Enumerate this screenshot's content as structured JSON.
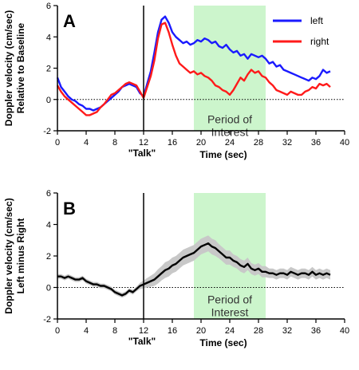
{
  "chart_data": [
    {
      "type": "line",
      "panel_label": "A",
      "ylabel_line1": "Doppler velocity (cm/sec)",
      "ylabel_line2": "Relative to Baseline",
      "xlabel": "Time  (sec)",
      "event_label": "\"Talk\"",
      "event_x": 12,
      "shaded_region": {
        "x": [
          19,
          29
        ],
        "label_line1": "Period of",
        "label_line2": "Interest",
        "color": "#ccf5cc"
      },
      "xlim": [
        0,
        40
      ],
      "ylim": [
        -2,
        6
      ],
      "xticks": [
        0,
        4,
        8,
        12,
        16,
        20,
        24,
        28,
        32,
        36,
        40
      ],
      "yticks": [
        -2,
        0,
        2,
        4,
        6
      ],
      "zero_line": "dotted",
      "legend_position": "top-right",
      "x": [
        0,
        0.5,
        1,
        1.5,
        2,
        2.5,
        3,
        3.5,
        4,
        4.5,
        5,
        5.5,
        6,
        6.5,
        7,
        7.5,
        8,
        8.5,
        9,
        9.5,
        10,
        10.5,
        11,
        11.5,
        12,
        12.5,
        13,
        13.5,
        14,
        14.5,
        15,
        15.5,
        16,
        16.5,
        17,
        17.5,
        18,
        18.5,
        19,
        19.5,
        20,
        20.5,
        21,
        21.5,
        22,
        22.5,
        23,
        23.5,
        24,
        24.5,
        25,
        25.5,
        26,
        26.5,
        27,
        27.5,
        28,
        28.5,
        29,
        29.5,
        30,
        30.5,
        31,
        31.5,
        32,
        32.5,
        33,
        33.5,
        34,
        34.5,
        35,
        35.5,
        36,
        36.5,
        37,
        37.5,
        38
      ],
      "series": [
        {
          "name": "left",
          "color": "#1a1aff",
          "values": [
            1.4,
            0.8,
            0.5,
            0.2,
            0.0,
            -0.1,
            -0.3,
            -0.4,
            -0.6,
            -0.6,
            -0.7,
            -0.6,
            -0.5,
            -0.3,
            -0.1,
            0.1,
            0.3,
            0.5,
            0.8,
            0.9,
            1.0,
            0.9,
            0.8,
            0.4,
            0.2,
            1.0,
            1.8,
            3.0,
            4.3,
            5.1,
            5.3,
            4.9,
            4.3,
            4.0,
            3.8,
            3.6,
            3.7,
            3.5,
            3.6,
            3.8,
            3.7,
            3.9,
            3.8,
            3.6,
            3.7,
            3.4,
            3.3,
            3.5,
            3.2,
            3.0,
            3.1,
            2.8,
            2.9,
            2.6,
            2.9,
            2.8,
            2.7,
            2.8,
            2.6,
            2.3,
            2.4,
            2.1,
            2.2,
            1.9,
            1.8,
            1.7,
            1.6,
            1.5,
            1.4,
            1.3,
            1.2,
            1.4,
            1.3,
            1.5,
            1.9,
            1.7,
            1.8
          ]
        },
        {
          "name": "right",
          "color": "#ff1a1a",
          "values": [
            0.9,
            0.5,
            0.2,
            0.0,
            -0.2,
            -0.4,
            -0.6,
            -0.8,
            -1.0,
            -1.0,
            -0.9,
            -0.8,
            -0.5,
            -0.3,
            0.0,
            0.3,
            0.4,
            0.6,
            0.8,
            1.0,
            1.1,
            1.0,
            0.9,
            0.5,
            0.1,
            0.8,
            1.5,
            2.5,
            3.9,
            4.8,
            4.9,
            4.3,
            3.5,
            2.8,
            2.3,
            2.1,
            1.9,
            1.7,
            1.8,
            1.6,
            1.7,
            1.5,
            1.4,
            1.2,
            0.9,
            0.8,
            0.6,
            0.5,
            0.3,
            0.6,
            1.0,
            1.4,
            1.2,
            1.6,
            1.9,
            1.7,
            1.8,
            1.5,
            1.4,
            1.1,
            0.9,
            0.6,
            0.5,
            0.4,
            0.3,
            0.5,
            0.4,
            0.3,
            0.3,
            0.5,
            0.6,
            0.8,
            0.7,
            1.0,
            0.9,
            1.0,
            0.8
          ]
        }
      ]
    },
    {
      "type": "line",
      "panel_label": "B",
      "ylabel_line1": "Doppler velocity (cm/sec)",
      "ylabel_line2": "Left minus Right",
      "xlabel": "Time  (sec)",
      "event_label": "\"Talk\"",
      "event_x": 12,
      "shaded_region": {
        "x": [
          19,
          29
        ],
        "label_line1": "Period of",
        "label_line2": "Interest",
        "color": "#ccf5cc"
      },
      "xlim": [
        0,
        40
      ],
      "ylim": [
        -2,
        6
      ],
      "xticks": [
        0,
        4,
        8,
        12,
        16,
        20,
        24,
        28,
        32,
        36,
        40
      ],
      "yticks": [
        -2,
        0,
        2,
        4,
        6
      ],
      "zero_line": "dotted",
      "band_color": "#c8c8c8",
      "x": [
        0,
        0.5,
        1,
        1.5,
        2,
        2.5,
        3,
        3.5,
        4,
        4.5,
        5,
        5.5,
        6,
        6.5,
        7,
        7.5,
        8,
        8.5,
        9,
        9.5,
        10,
        10.5,
        11,
        11.5,
        12,
        12.5,
        13,
        13.5,
        14,
        14.5,
        15,
        15.5,
        16,
        16.5,
        17,
        17.5,
        18,
        18.5,
        19,
        19.5,
        20,
        20.5,
        21,
        21.5,
        22,
        22.5,
        23,
        23.5,
        24,
        24.5,
        25,
        25.5,
        26,
        26.5,
        27,
        27.5,
        28,
        28.5,
        29,
        29.5,
        30,
        30.5,
        31,
        31.5,
        32,
        32.5,
        33,
        33.5,
        34,
        34.5,
        35,
        35.5,
        36,
        36.5,
        37,
        37.5,
        38
      ],
      "series": [
        {
          "color": "#000000",
          "values": [
            0.7,
            0.7,
            0.6,
            0.7,
            0.6,
            0.5,
            0.5,
            0.6,
            0.4,
            0.3,
            0.2,
            0.2,
            0.1,
            0.1,
            0.0,
            -0.1,
            -0.3,
            -0.4,
            -0.5,
            -0.4,
            -0.2,
            -0.3,
            -0.1,
            0.1,
            0.2,
            0.3,
            0.4,
            0.5,
            0.7,
            0.9,
            1.1,
            1.2,
            1.4,
            1.5,
            1.7,
            1.9,
            2.0,
            2.1,
            2.2,
            2.4,
            2.6,
            2.7,
            2.8,
            2.6,
            2.5,
            2.3,
            2.1,
            1.9,
            1.9,
            1.7,
            1.6,
            1.4,
            1.3,
            1.5,
            1.2,
            1.1,
            1.2,
            1.0,
            1.0,
            0.9,
            0.9,
            0.8,
            0.9,
            0.9,
            0.8,
            1.0,
            0.9,
            0.8,
            0.9,
            0.9,
            0.8,
            1.0,
            0.8,
            0.9,
            0.8,
            0.9,
            0.8
          ],
          "band_halfwidth": [
            0.15,
            0.15,
            0.15,
            0.15,
            0.15,
            0.15,
            0.15,
            0.15,
            0.15,
            0.15,
            0.15,
            0.15,
            0.15,
            0.15,
            0.15,
            0.15,
            0.15,
            0.15,
            0.15,
            0.15,
            0.15,
            0.15,
            0.15,
            0.2,
            0.25,
            0.3,
            0.35,
            0.4,
            0.45,
            0.45,
            0.5,
            0.5,
            0.5,
            0.5,
            0.5,
            0.5,
            0.5,
            0.5,
            0.5,
            0.5,
            0.5,
            0.5,
            0.5,
            0.5,
            0.5,
            0.45,
            0.45,
            0.45,
            0.45,
            0.4,
            0.4,
            0.4,
            0.4,
            0.4,
            0.35,
            0.35,
            0.35,
            0.35,
            0.35,
            0.3,
            0.3,
            0.3,
            0.3,
            0.3,
            0.3,
            0.3,
            0.3,
            0.3,
            0.3,
            0.3,
            0.3,
            0.3,
            0.3,
            0.3,
            0.3,
            0.3,
            0.3
          ]
        }
      ]
    }
  ]
}
